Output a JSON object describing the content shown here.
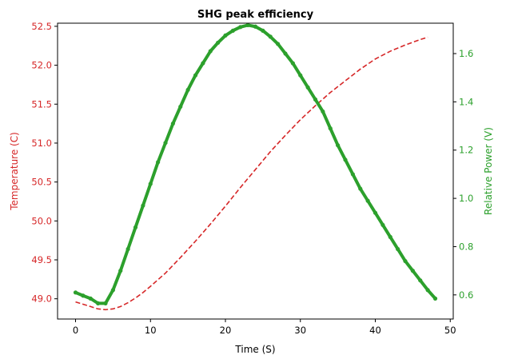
{
  "chart_data": {
    "type": "line",
    "title": "SHG peak efficiency",
    "xlabel": "Time (S)",
    "ylabel_left": "Temperature (C)",
    "ylabel_right": "Relative Power (V)",
    "xlim": [
      -2.4,
      50.4
    ],
    "ylim_left": [
      48.74,
      52.54
    ],
    "ylim_right": [
      0.5,
      1.726
    ],
    "xticks": [
      0,
      10,
      20,
      30,
      40,
      50
    ],
    "xtick_labels": [
      "0",
      "10",
      "20",
      "30",
      "40",
      "50"
    ],
    "yticks_left": [
      49.0,
      49.5,
      50.0,
      50.5,
      51.0,
      51.5,
      52.0,
      52.5
    ],
    "ytick_labels_left": [
      "49.0",
      "49.5",
      "50.0",
      "50.5",
      "51.0",
      "51.5",
      "52.0",
      "52.5"
    ],
    "yticks_right": [
      0.6,
      0.8,
      1.0,
      1.2,
      1.4,
      1.6
    ],
    "ytick_labels_right": [
      "0.6",
      "0.8",
      "1.0",
      "1.2",
      "1.4",
      "1.6"
    ],
    "grid": false,
    "colors": {
      "temperature": "#d62728",
      "power": "#2ca02c",
      "axes": "#000000"
    },
    "series": [
      {
        "axis": "left",
        "style": "dashed",
        "color": "#d62728",
        "x": [
          0,
          1,
          2,
          3,
          4,
          5,
          6,
          7,
          8,
          9,
          10,
          12,
          14,
          16,
          18,
          20,
          22,
          24,
          26,
          28,
          30,
          32,
          34,
          36,
          38,
          40,
          42,
          44,
          46,
          47
        ],
        "y": [
          48.96,
          48.93,
          48.9,
          48.87,
          48.86,
          48.87,
          48.9,
          48.95,
          49.01,
          49.08,
          49.16,
          49.33,
          49.53,
          49.74,
          49.96,
          50.19,
          50.43,
          50.66,
          50.89,
          51.1,
          51.3,
          51.48,
          51.65,
          51.8,
          51.95,
          52.08,
          52.18,
          52.26,
          52.33,
          52.36
        ]
      },
      {
        "axis": "right",
        "style": "solid-markers",
        "color": "#2ca02c",
        "x": [
          0,
          1,
          2,
          3,
          4,
          5,
          6,
          7,
          8,
          9,
          10,
          11,
          12,
          13,
          14,
          15,
          16,
          17,
          18,
          19,
          20,
          21,
          22,
          23,
          24,
          25,
          26,
          27,
          28,
          29,
          30,
          31,
          32,
          33,
          34,
          35,
          36,
          37,
          38,
          39,
          40,
          41,
          42,
          43,
          44,
          45,
          46,
          47,
          48
        ],
        "y": [
          0.61,
          0.597,
          0.585,
          0.565,
          0.565,
          0.62,
          0.7,
          0.79,
          0.88,
          0.97,
          1.06,
          1.15,
          1.23,
          1.31,
          1.38,
          1.45,
          1.51,
          1.56,
          1.61,
          1.645,
          1.675,
          1.695,
          1.71,
          1.718,
          1.712,
          1.695,
          1.67,
          1.64,
          1.6,
          1.56,
          1.51,
          1.46,
          1.41,
          1.36,
          1.29,
          1.22,
          1.16,
          1.1,
          1.04,
          0.99,
          0.94,
          0.89,
          0.84,
          0.79,
          0.74,
          0.7,
          0.66,
          0.62,
          0.585
        ]
      }
    ]
  }
}
